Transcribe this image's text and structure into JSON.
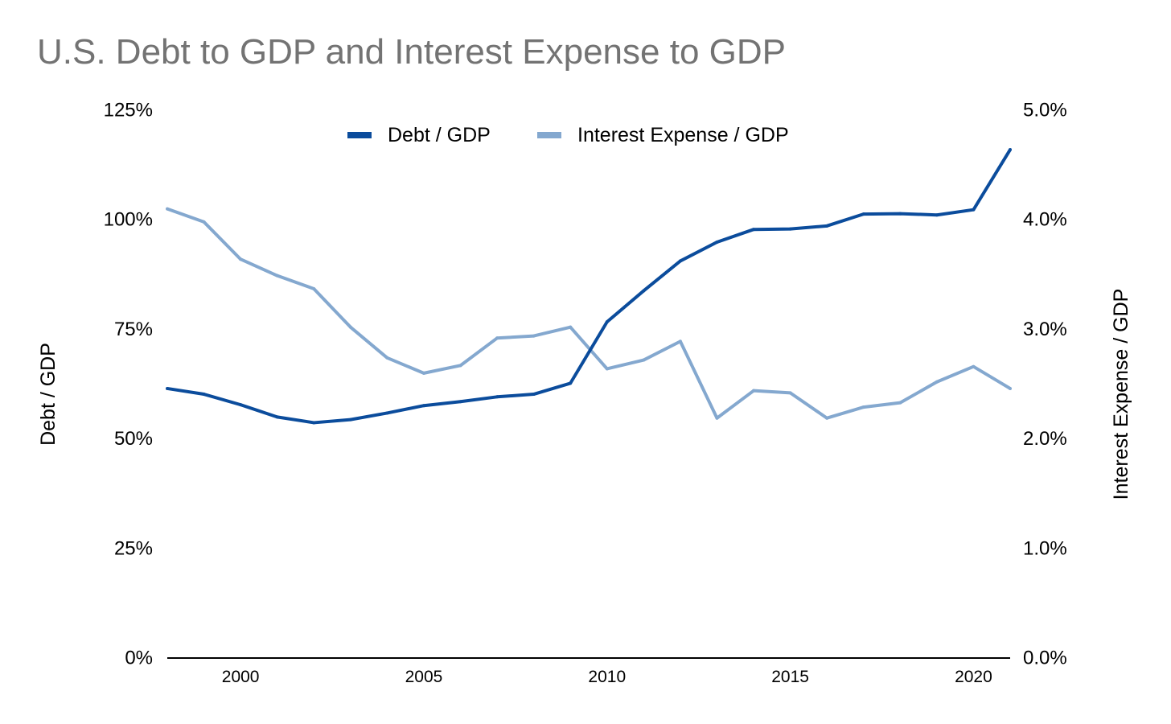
{
  "chart_data": {
    "type": "line",
    "title": "U.S. Debt to GDP and Interest Expense to GDP",
    "x": [
      1998,
      1999,
      2000,
      2001,
      2002,
      2003,
      2004,
      2005,
      2006,
      2007,
      2008,
      2009,
      2010,
      2011,
      2012,
      2013,
      2014,
      2015,
      2016,
      2017,
      2018,
      2019,
      2020,
      2021
    ],
    "xlim": [
      1998,
      2021
    ],
    "x_ticks": [
      2000,
      2005,
      2010,
      2015,
      2020
    ],
    "x_tick_labels": [
      "2000",
      "2005",
      "2010",
      "2015",
      "2020"
    ],
    "ylabel_left": "Debt / GDP",
    "ylabel_right": "Interest Expense / GDP",
    "ylim_left": [
      0,
      125
    ],
    "ylim_right": [
      0,
      5
    ],
    "left_ticks": [
      0,
      25,
      50,
      75,
      100,
      125
    ],
    "left_tick_labels": [
      "0%",
      "25%",
      "50%",
      "75%",
      "100%",
      "125%"
    ],
    "right_ticks": [
      0,
      1,
      2,
      3,
      4,
      5
    ],
    "right_tick_labels": [
      "0.0%",
      "1.0%",
      "2.0%",
      "3.0%",
      "4.0%",
      "5.0%"
    ],
    "grid": false,
    "legend_position": "top-center",
    "series": [
      {
        "name": "Debt / GDP",
        "axis": "left",
        "color": "#0b4c9c",
        "values": [
          61.5,
          60.2,
          57.8,
          55.0,
          53.7,
          54.4,
          55.9,
          57.6,
          58.5,
          59.6,
          60.2,
          62.7,
          76.7,
          83.8,
          90.6,
          94.9,
          97.8,
          97.9,
          98.6,
          101.3,
          101.4,
          101.1,
          102.3,
          116.0
        ]
      },
      {
        "name": "Interest Expense / GDP",
        "axis": "right",
        "color": "#84a8cf",
        "values": [
          4.1,
          3.98,
          3.64,
          3.49,
          3.37,
          3.02,
          2.74,
          2.6,
          2.67,
          2.92,
          2.94,
          3.02,
          2.64,
          2.72,
          2.89,
          2.19,
          2.44,
          2.42,
          2.19,
          2.29,
          2.33,
          2.52,
          2.66,
          2.46
        ]
      }
    ]
  }
}
